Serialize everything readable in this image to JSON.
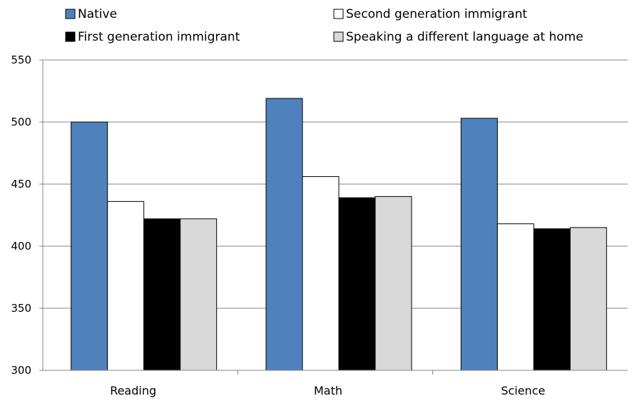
{
  "chart_data": {
    "type": "bar",
    "title": "",
    "xlabel": "",
    "ylabel": "",
    "categories": [
      "Reading",
      "Math",
      "Science"
    ],
    "series": [
      {
        "name": "Native",
        "values": [
          500,
          519,
          503
        ],
        "color": "#4f81bd"
      },
      {
        "name": "Second generation immigrant",
        "values": [
          436,
          456,
          418
        ],
        "color": "#ffffff"
      },
      {
        "name": "First generation immigrant",
        "values": [
          422,
          439,
          414
        ],
        "color": "#000000"
      },
      {
        "name": "Speaking a different language at home",
        "values": [
          422,
          440,
          415
        ],
        "color": "#d9d9d9"
      }
    ],
    "ylim": [
      300,
      550
    ],
    "yticks": [
      "300",
      "350",
      "400",
      "450",
      "500",
      "550"
    ],
    "grid": true,
    "legend_position": "top"
  }
}
